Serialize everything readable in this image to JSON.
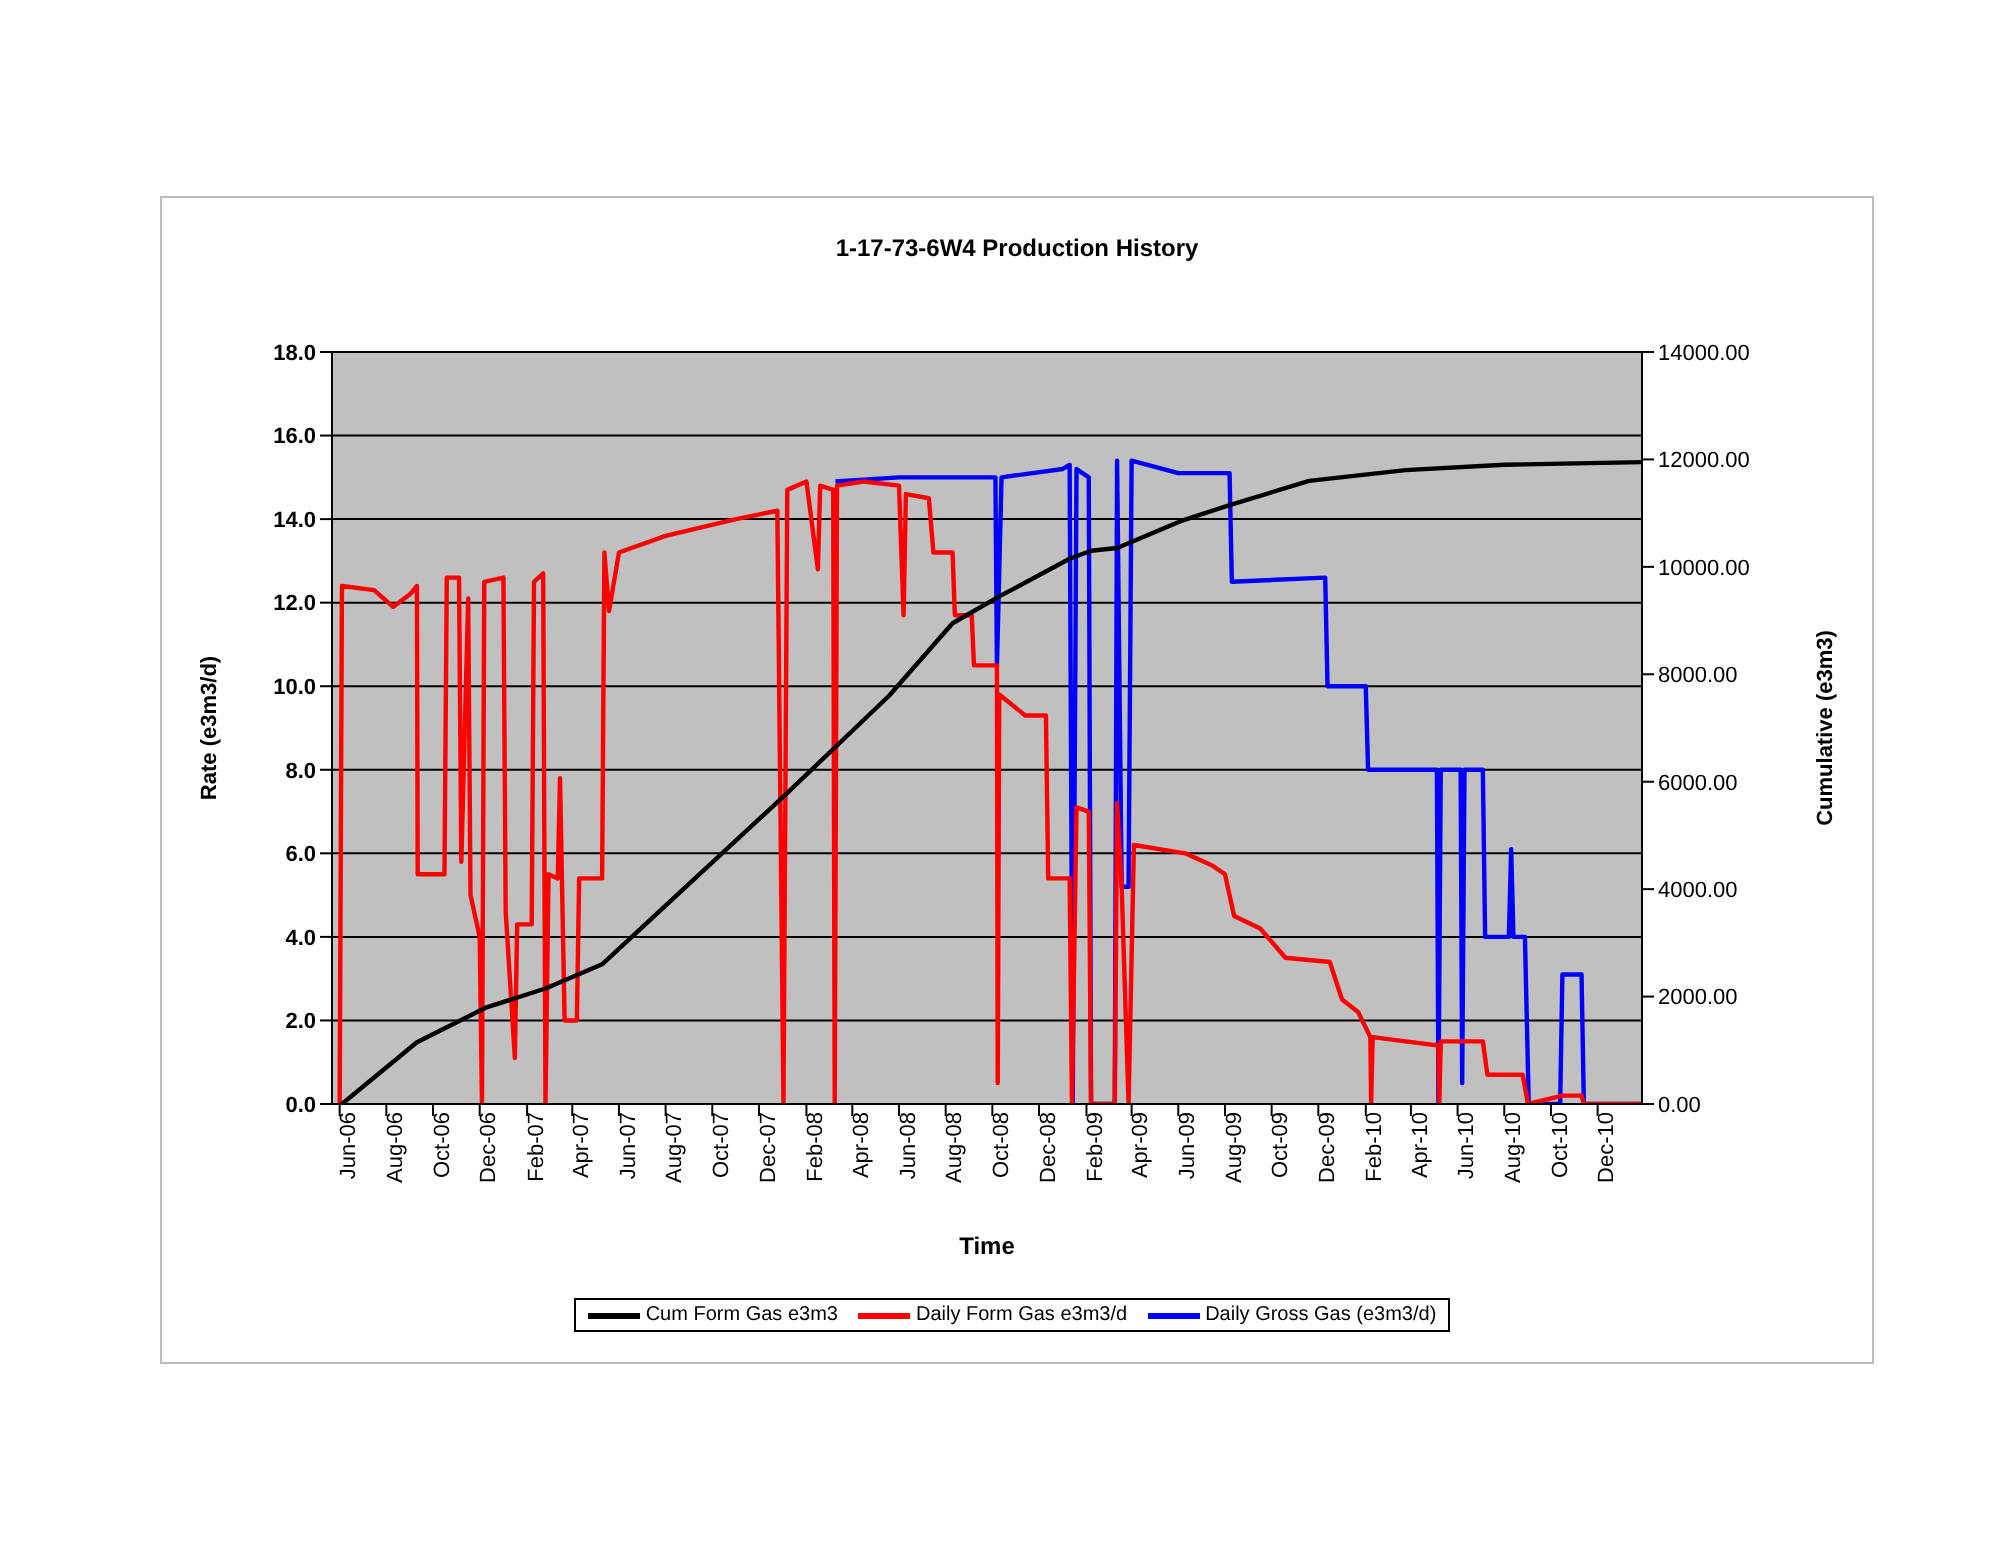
{
  "chart_data": {
    "type": "line",
    "title": "1-17-73-6W4 Production History",
    "xlabel": "Time",
    "ylabel": "Rate (e3m3/d)",
    "y2label": "Cumulative (e3m3)",
    "xlim": [
      "2006-05-22",
      "2011-01-28"
    ],
    "xticks": [
      {
        "value": "2006-06-01",
        "label": "Jun-06"
      },
      {
        "value": "2006-08-01",
        "label": "Aug-06"
      },
      {
        "value": "2006-10-01",
        "label": "Oct-06"
      },
      {
        "value": "2006-12-01",
        "label": "Dec-06"
      },
      {
        "value": "2007-02-01",
        "label": "Feb-07"
      },
      {
        "value": "2007-04-01",
        "label": "Apr-07"
      },
      {
        "value": "2007-06-01",
        "label": "Jun-07"
      },
      {
        "value": "2007-08-01",
        "label": "Aug-07"
      },
      {
        "value": "2007-10-01",
        "label": "Oct-07"
      },
      {
        "value": "2007-12-01",
        "label": "Dec-07"
      },
      {
        "value": "2008-02-01",
        "label": "Feb-08"
      },
      {
        "value": "2008-04-01",
        "label": "Apr-08"
      },
      {
        "value": "2008-06-01",
        "label": "Jun-08"
      },
      {
        "value": "2008-08-01",
        "label": "Aug-08"
      },
      {
        "value": "2008-10-01",
        "label": "Oct-08"
      },
      {
        "value": "2008-12-01",
        "label": "Dec-08"
      },
      {
        "value": "2009-02-01",
        "label": "Feb-09"
      },
      {
        "value": "2009-04-01",
        "label": "Apr-09"
      },
      {
        "value": "2009-06-01",
        "label": "Jun-09"
      },
      {
        "value": "2009-08-01",
        "label": "Aug-09"
      },
      {
        "value": "2009-10-01",
        "label": "Oct-09"
      },
      {
        "value": "2009-12-01",
        "label": "Dec-09"
      },
      {
        "value": "2010-02-01",
        "label": "Feb-10"
      },
      {
        "value": "2010-04-01",
        "label": "Apr-10"
      },
      {
        "value": "2010-06-01",
        "label": "Jun-10"
      },
      {
        "value": "2010-08-01",
        "label": "Aug-10"
      },
      {
        "value": "2010-10-01",
        "label": "Oct-10"
      },
      {
        "value": "2010-12-01",
        "label": "Dec-10"
      }
    ],
    "ylim": [
      0,
      18
    ],
    "yticks": [
      {
        "value": 0,
        "label": "0.0"
      },
      {
        "value": 2,
        "label": "2.0"
      },
      {
        "value": 4,
        "label": "4.0"
      },
      {
        "value": 6,
        "label": "6.0"
      },
      {
        "value": 8,
        "label": "8.0"
      },
      {
        "value": 10,
        "label": "10.0"
      },
      {
        "value": 12,
        "label": "12.0"
      },
      {
        "value": 14,
        "label": "14.0"
      },
      {
        "value": 16,
        "label": "16.0"
      },
      {
        "value": 18,
        "label": "18.0"
      }
    ],
    "y2lim": [
      0,
      14000
    ],
    "y2ticks": [
      {
        "value": 0,
        "label": "0.00"
      },
      {
        "value": 2000,
        "label": "2000.00"
      },
      {
        "value": 4000,
        "label": "4000.00"
      },
      {
        "value": 6000,
        "label": "6000.00"
      },
      {
        "value": 8000,
        "label": "8000.00"
      },
      {
        "value": 10000,
        "label": "10000.00"
      },
      {
        "value": 12000,
        "label": "12000.00"
      },
      {
        "value": 14000,
        "label": "14000.00"
      }
    ],
    "grid": "y",
    "legend": "bottom",
    "marker": "none",
    "line_style": "solid",
    "series": [
      {
        "name": "Daily Gross Gas (e3m3/d)",
        "color": "#0000ff",
        "x": [
          "2008-03-10",
          "2008-06-01",
          "2008-10-05",
          "2008-10-07",
          "2008-10-13",
          "2009-01-01",
          "2009-01-10",
          "2009-01-14",
          "2009-01-19",
          "2009-02-04",
          "2009-02-07",
          "2009-03-10",
          "2009-03-13",
          "2009-03-19",
          "2009-03-28",
          "2009-04-01",
          "2009-06-01",
          "2009-08-07",
          "2009-08-10",
          "2009-12-10",
          "2009-12-13",
          "2010-02-01",
          "2010-02-04",
          "2010-05-05",
          "2010-05-07",
          "2010-05-10",
          "2010-06-05",
          "2010-06-07",
          "2010-06-10",
          "2010-07-04",
          "2010-07-07",
          "2010-08-07",
          "2010-08-10",
          "2010-08-13",
          "2010-08-28",
          "2010-09-02",
          "2010-10-13",
          "2010-10-16",
          "2010-11-10",
          "2010-11-13",
          "2011-01-28"
        ],
        "values": [
          14.9,
          15.0,
          15.0,
          10.5,
          15.0,
          15.2,
          15.3,
          0,
          15.2,
          15.0,
          0,
          0,
          15.4,
          5.2,
          5.2,
          15.4,
          15.1,
          15.1,
          12.5,
          12.6,
          10.0,
          10.0,
          8.0,
          8.0,
          0,
          8.0,
          8.0,
          0.5,
          8.0,
          8.0,
          4.0,
          4.0,
          6.1,
          4.0,
          4.0,
          0,
          0,
          3.1,
          3.1,
          0,
          0
        ]
      },
      {
        "name": "Daily Form Gas e3m3/d",
        "color": "#ff0000",
        "x": [
          "2006-06-01",
          "2006-06-04",
          "2006-07-16",
          "2006-08-10",
          "2006-09-01",
          "2006-09-10",
          "2006-09-11",
          "2006-10-16",
          "2006-10-19",
          "2006-11-04",
          "2006-11-07",
          "2006-11-16",
          "2006-11-19",
          "2006-12-01",
          "2006-12-04",
          "2006-12-07",
          "2007-01-01",
          "2007-01-04",
          "2007-01-16",
          "2007-01-19",
          "2007-02-07",
          "2007-02-10",
          "2007-02-22",
          "2007-02-25",
          "2007-03-01",
          "2007-03-13",
          "2007-03-16",
          "2007-03-22",
          "2007-04-07",
          "2007-04-10",
          "2007-05-10",
          "2007-05-13",
          "2007-05-19",
          "2007-06-01",
          "2007-08-01",
          "2007-11-01",
          "2007-12-25",
          "2008-01-02",
          "2008-01-07",
          "2008-02-01",
          "2008-02-16",
          "2008-02-19",
          "2008-03-07",
          "2008-03-09",
          "2008-03-12",
          "2008-04-16",
          "2008-06-01",
          "2008-06-07",
          "2008-06-10",
          "2008-07-10",
          "2008-07-16",
          "2008-08-10",
          "2008-08-13",
          "2008-09-04",
          "2008-09-07",
          "2008-10-07",
          "2008-10-08",
          "2008-10-10",
          "2008-11-13",
          "2008-12-10",
          "2008-12-13",
          "2009-01-10",
          "2009-01-13",
          "2009-01-19",
          "2009-02-04",
          "2009-02-07",
          "2009-03-10",
          "2009-03-13",
          "2009-03-19",
          "2009-03-28",
          "2009-04-04",
          "2009-06-10",
          "2009-07-16",
          "2009-08-01",
          "2009-08-13",
          "2009-09-16",
          "2009-10-19",
          "2009-12-16",
          "2010-01-01",
          "2010-01-22",
          "2010-02-07",
          "2010-02-08",
          "2010-02-10",
          "2010-03-25",
          "2010-05-07",
          "2010-05-08",
          "2010-05-10",
          "2010-07-04",
          "2010-07-10",
          "2010-08-25",
          "2010-09-01",
          "2010-10-16",
          "2010-11-10",
          "2010-11-13",
          "2011-01-28"
        ],
        "values": [
          0,
          12.4,
          12.3,
          11.9,
          12.2,
          12.4,
          5.5,
          5.5,
          12.6,
          12.6,
          5.8,
          12.1,
          5.0,
          4.0,
          0,
          12.5,
          12.6,
          4.6,
          1.1,
          4.3,
          4.3,
          12.5,
          12.7,
          0,
          5.5,
          5.4,
          7.8,
          2.0,
          2.0,
          5.4,
          5.4,
          13.2,
          11.8,
          13.2,
          13.6,
          14.0,
          14.2,
          0,
          14.7,
          14.9,
          12.8,
          14.8,
          14.7,
          0,
          14.8,
          14.9,
          14.8,
          11.7,
          14.6,
          14.5,
          13.2,
          13.2,
          11.7,
          11.7,
          10.5,
          10.5,
          0.5,
          9.8,
          9.3,
          9.3,
          5.4,
          5.4,
          0,
          7.1,
          7.0,
          0,
          0,
          7.2,
          5.2,
          0,
          6.2,
          6.0,
          5.7,
          5.5,
          4.5,
          4.2,
          3.5,
          3.4,
          2.5,
          2.2,
          1.6,
          0,
          1.6,
          1.5,
          1.4,
          0,
          1.5,
          1.5,
          0.7,
          0.7,
          0,
          0.2,
          0.2,
          0,
          0
        ]
      },
      {
        "name": "Cum Form Gas e3m3",
        "color": "#000000",
        "axis": "y2",
        "x": [
          "2006-06-04",
          "2006-09-10",
          "2006-12-10",
          "2007-02-25",
          "2007-05-10",
          "2008-01-04",
          "2008-05-19",
          "2008-08-10",
          "2008-10-10",
          "2009-01-10",
          "2009-02-07",
          "2009-03-13",
          "2009-06-04",
          "2009-08-07",
          "2009-11-19",
          "2010-03-25",
          "2010-08-01",
          "2011-01-28"
        ],
        "values": [
          0,
          1150,
          1800,
          2150,
          2600,
          5750,
          7600,
          8950,
          9450,
          10150,
          10300,
          10350,
          10850,
          11150,
          11600,
          11800,
          11900,
          11950
        ]
      }
    ]
  }
}
